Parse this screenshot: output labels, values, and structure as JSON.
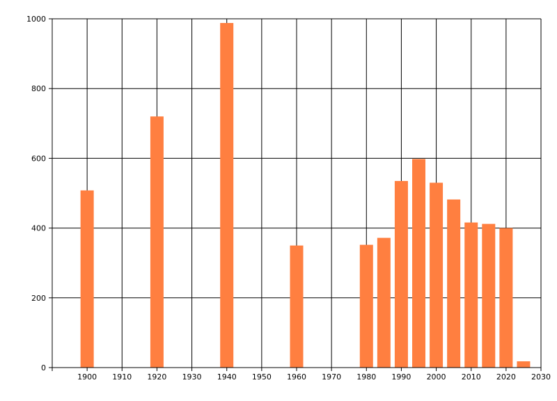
{
  "chart_data": {
    "type": "bar",
    "x": [
      1900,
      1920,
      1940,
      1960,
      1980,
      1985,
      1990,
      1995,
      2000,
      2005,
      2010,
      2015,
      2020,
      2025
    ],
    "values": [
      508,
      720,
      988,
      350,
      352,
      372,
      535,
      598,
      530,
      482,
      416,
      412,
      400,
      18
    ],
    "xlim": [
      1890,
      2030
    ],
    "ylim": [
      0,
      1000
    ],
    "x_ticks": [
      1900,
      1910,
      1920,
      1930,
      1940,
      1950,
      1960,
      1970,
      1980,
      1990,
      2000,
      2010,
      2020,
      2030
    ],
    "y_ticks": [
      0,
      200,
      400,
      600,
      800,
      1000
    ],
    "grid": true,
    "bar_color": "#ff7f40",
    "axis_color": "#000000",
    "title": "",
    "xlabel": "",
    "ylabel": ""
  }
}
